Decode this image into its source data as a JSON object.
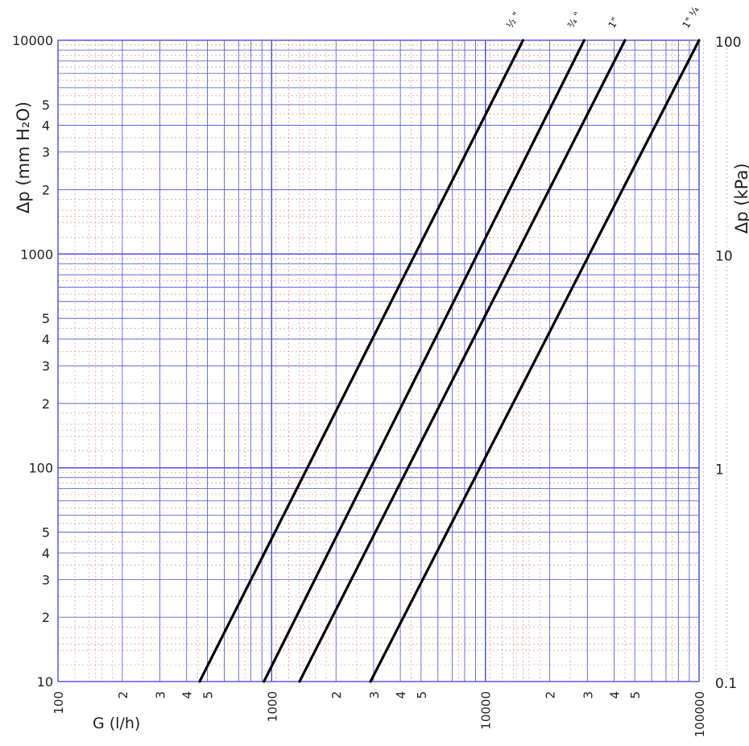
{
  "chart_data": {
    "type": "line",
    "title": "",
    "scale": "log-log",
    "grid": true,
    "colors": {
      "major_grid": "#4a4fe0",
      "minor_grid": "#e28a8a",
      "lines": "#000000"
    },
    "x_axis": {
      "label": "G (l/h)",
      "range": [
        100,
        100000
      ],
      "decade_labels": [
        "100",
        "1000",
        "10000",
        "100000"
      ],
      "minor_labels": [
        "2",
        "3",
        "4",
        "5"
      ]
    },
    "y_axis_left": {
      "label": "Δp (mm H₂O)",
      "range": [
        10,
        10000
      ],
      "decade_labels": [
        "10",
        "100",
        "1000",
        "10000"
      ],
      "minor_labels": [
        "2",
        "3",
        "4",
        "5"
      ]
    },
    "y_axis_right": {
      "label": "Δp (kPa)",
      "range": [
        0.1,
        100
      ],
      "decade_labels": [
        "0.1",
        "1",
        "10",
        "100"
      ]
    },
    "series": [
      {
        "name": "½ \"",
        "x": [
          460,
          15000
        ],
        "y": [
          10,
          10000
        ]
      },
      {
        "name": "¾ \"",
        "x": [
          920,
          29000
        ],
        "y": [
          10,
          10000
        ]
      },
      {
        "name": "1\"",
        "x": [
          1350,
          45000
        ],
        "y": [
          10,
          10000
        ]
      },
      {
        "name": "1\" ¼",
        "x": [
          2900,
          100000
        ],
        "y": [
          10,
          10000
        ]
      }
    ]
  }
}
